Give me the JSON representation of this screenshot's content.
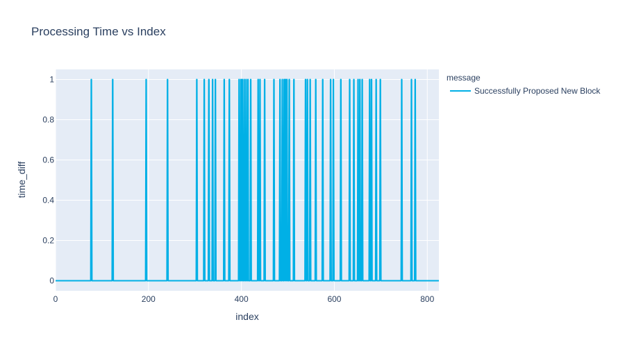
{
  "chart_data": {
    "type": "line",
    "title": "Processing Time vs Index",
    "xlabel": "index",
    "ylabel": "time_diff",
    "xlim": [
      0,
      825
    ],
    "ylim": [
      -0.05,
      1.05
    ],
    "x_ticks": [
      0,
      200,
      400,
      600,
      800
    ],
    "y_ticks": [
      0,
      0.2,
      0.4,
      0.6,
      0.8,
      1
    ],
    "y_tick_labels": [
      "0",
      "0.2",
      "0.4",
      "0.6",
      "0.8",
      "1"
    ],
    "grid": true,
    "legend": {
      "title": "message",
      "position": "top-right"
    },
    "series": [
      {
        "name": "Successfully Proposed New Block",
        "color": "#00b0e6",
        "x_range": [
          0,
          825
        ],
        "baseline": 0,
        "spike_value": 1,
        "spike_indices": [
          77,
          123,
          195,
          241,
          304,
          320,
          330,
          338,
          344,
          363,
          374,
          395,
          399,
          402,
          406,
          410,
          414,
          420,
          436,
          440,
          450,
          470,
          483,
          488,
          492,
          495,
          498,
          503,
          513,
          538,
          542,
          548,
          560,
          575,
          592,
          598,
          614,
          633,
          642,
          651,
          655,
          660,
          676,
          680,
          690,
          699,
          745,
          766,
          774
        ]
      }
    ]
  },
  "colors": {
    "plot_background": "#e5ecf6",
    "grid": "#ffffff",
    "line": "#00b0e6",
    "text": "#2a3f5f"
  }
}
